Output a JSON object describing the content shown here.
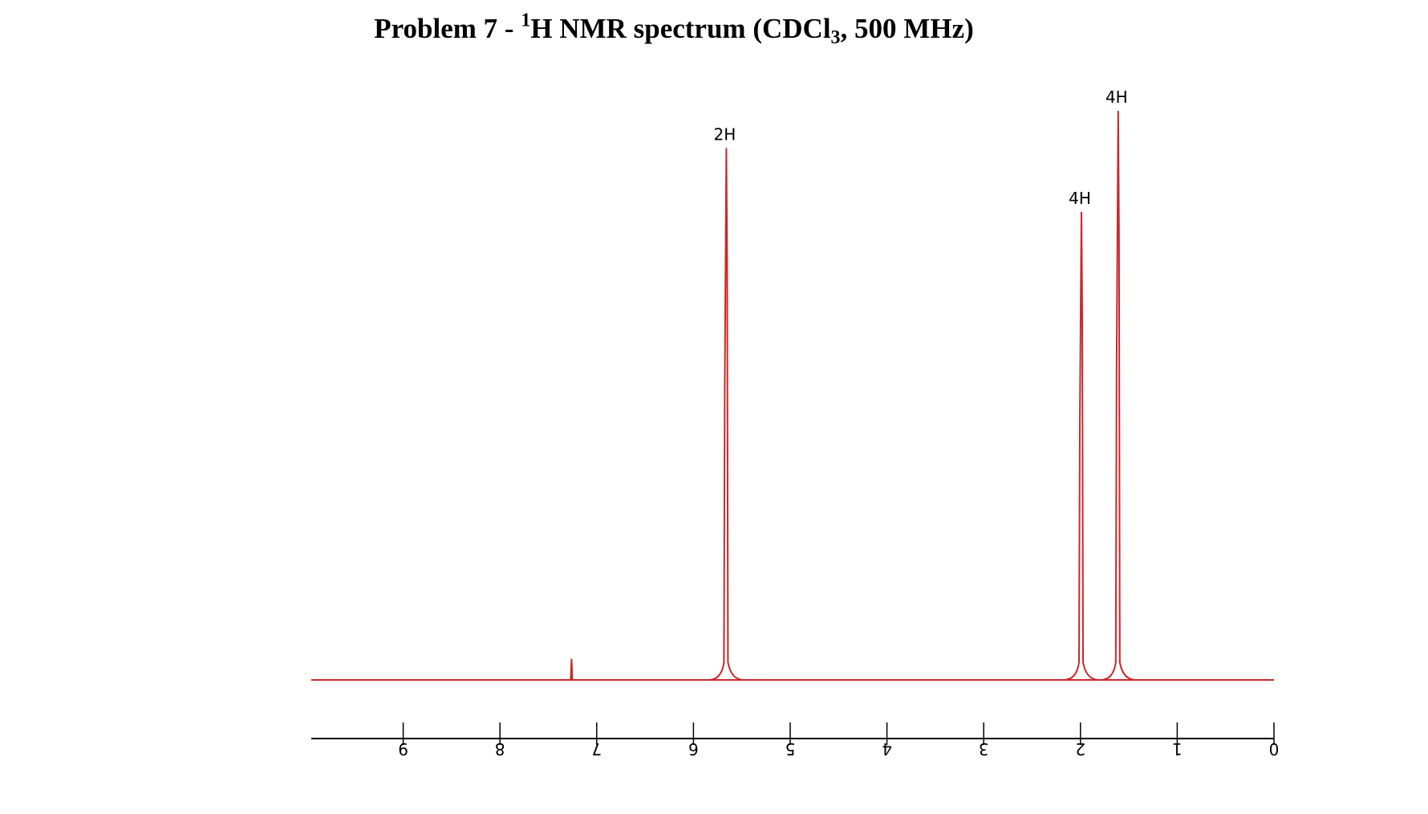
{
  "title": {
    "prefix": "Problem 7 - ",
    "superscript": "1",
    "main": "H NMR spectrum (CDCl",
    "subscript": "3",
    "suffix": ", 500 MHz)"
  },
  "colors": {
    "spectrum": "#c8282d",
    "axis": "#000000",
    "text": "#000000"
  },
  "chart_data": {
    "type": "line",
    "xlim": [
      9.95,
      0
    ],
    "x_axis_reversed": true,
    "ylim": [
      0,
      1.12
    ],
    "ticks": [
      9,
      8,
      7,
      6,
      5,
      4,
      3,
      2,
      1,
      0
    ],
    "tick_labels": [
      "9",
      "8",
      "7",
      "6",
      "5",
      "4",
      "3",
      "2",
      "1",
      "0"
    ],
    "grid": false,
    "peaks": [
      {
        "shift": 7.26,
        "height": 0.04,
        "label": ""
      },
      {
        "shift": 5.66,
        "height": 1.0,
        "label": "2H"
      },
      {
        "shift": 1.99,
        "height": 0.88,
        "label": "4H"
      },
      {
        "shift": 1.61,
        "height": 1.07,
        "label": "4H"
      }
    ]
  }
}
